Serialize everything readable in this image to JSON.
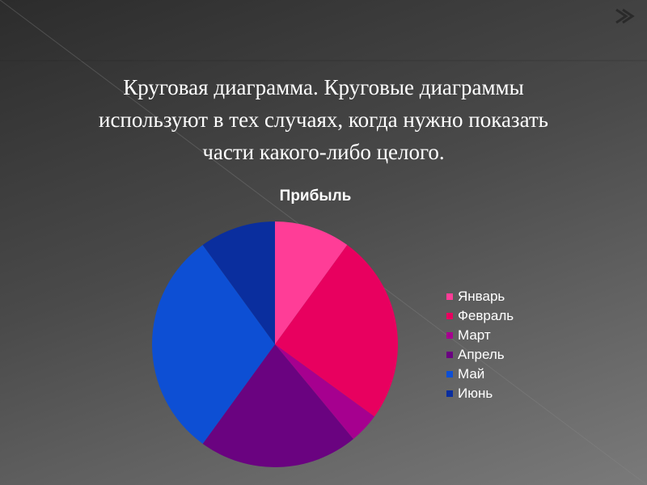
{
  "slide": {
    "text_lines": [
      "Круговая диаграмма. Круговые диаграммы",
      "используют в тех случаях, когда нужно показать",
      "части какого-либо целого."
    ]
  },
  "chart_data": {
    "type": "pie",
    "title": "Прибыль",
    "categories": [
      "Январь",
      "Февраль",
      "Март",
      "Апрель",
      "Май",
      "Июнь"
    ],
    "values": [
      10,
      25,
      4,
      21,
      30,
      10
    ],
    "colors": [
      "#ff3d97",
      "#e8005f",
      "#a6008f",
      "#6a0380",
      "#0d4fd4",
      "#0a2e9e"
    ],
    "legend_position": "right"
  },
  "theme": {
    "background": "#4a4a4a",
    "text_color": "#ffffff",
    "arrow_color": "#3a3a3a"
  }
}
